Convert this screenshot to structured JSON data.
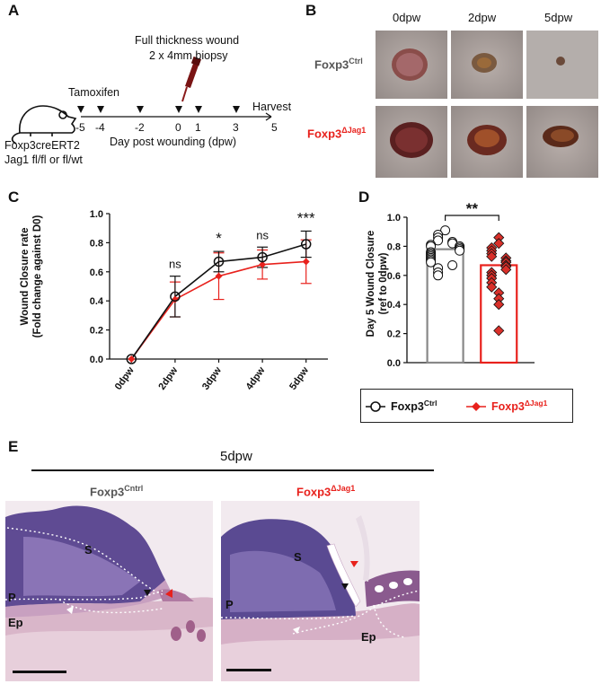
{
  "panels": {
    "A": {
      "letter": "A",
      "surgery_line1": "Full thickness wound",
      "surgery_line2": "2 x 4mm biopsy",
      "tamoxifen": "Tamoxifen",
      "harvest": "Harvest",
      "ticks": [
        "-5",
        "-4",
        "-2",
        "0",
        "1",
        "3",
        "5"
      ],
      "axis_label": "Day post wounding (dpw)",
      "mouse_line1": "Foxp3creERT2",
      "mouse_line2": "Jag1 fl/fl or fl/wt"
    },
    "B": {
      "letter": "B",
      "cols": [
        "0dpw",
        "2dpw",
        "5dpw"
      ],
      "row_ctrl_base": "Foxp3",
      "row_ctrl_sup": "Ctrl",
      "row_jag_base": "Foxp3",
      "row_jag_sup": "ΔJag1"
    },
    "E": {
      "letter": "E",
      "title": "5dpw",
      "left_base": "Foxp3",
      "left_sup": "Cntrl",
      "right_base": "Foxp3",
      "right_sup": "ΔJag1",
      "labels": {
        "S": "S",
        "P": "P",
        "Ep": "Ep"
      }
    }
  },
  "legend": {
    "ctrl_base": "Foxp3",
    "ctrl_sup": "Ctrl",
    "jag_base": "Foxp3",
    "jag_sup": "ΔJag1"
  },
  "colors": {
    "ctrl": "#111111",
    "jag": "#e8211c",
    "jag_fill": "#d9302a"
  },
  "chart_data": [
    {
      "id": "C",
      "letter": "C",
      "type": "line",
      "ylabel_line1": "Wound Closure rate",
      "ylabel_line2": "(Fold change against D0)",
      "categories": [
        "0dpw",
        "2dpw",
        "3dpw",
        "4dpw",
        "5dpw"
      ],
      "ylim": [
        0,
        1.0
      ],
      "yticks": [
        "0.0",
        "0.2",
        "0.4",
        "0.6",
        "0.8",
        "1.0"
      ],
      "series": [
        {
          "values": [
            0.0,
            0.43,
            0.67,
            0.7,
            0.79
          ],
          "err": [
            0,
            0.14,
            0.07,
            0.07,
            0.09
          ]
        },
        {
          "values": [
            0.0,
            0.41,
            0.57,
            0.65,
            0.67
          ],
          "err": [
            0,
            0.12,
            0.16,
            0.1,
            0.15
          ]
        }
      ],
      "significance": [
        "",
        "ns",
        "*",
        "ns",
        "***"
      ]
    },
    {
      "id": "D",
      "letter": "D",
      "type": "bar",
      "ylabel_line1": "Day 5 Wound Closure",
      "ylabel_line2": "(ref to 0dpw)",
      "ylim": [
        0,
        1.0
      ],
      "yticks": [
        "0.0",
        "0.2",
        "0.4",
        "0.6",
        "0.8",
        "1.0"
      ],
      "bars": [
        0.78,
        0.67
      ],
      "significance": "**",
      "ctrl_points": [
        0.91,
        0.88,
        0.86,
        0.84,
        0.83,
        0.82,
        0.81,
        0.8,
        0.8,
        0.79,
        0.78,
        0.77,
        0.76,
        0.75,
        0.74,
        0.73,
        0.72,
        0.71,
        0.7,
        0.69,
        0.67,
        0.65,
        0.62,
        0.6
      ],
      "jag_points": [
        0.86,
        0.82,
        0.79,
        0.77,
        0.75,
        0.73,
        0.72,
        0.7,
        0.69,
        0.67,
        0.66,
        0.64,
        0.62,
        0.6,
        0.58,
        0.55,
        0.52,
        0.48,
        0.44,
        0.4,
        0.22
      ]
    }
  ]
}
